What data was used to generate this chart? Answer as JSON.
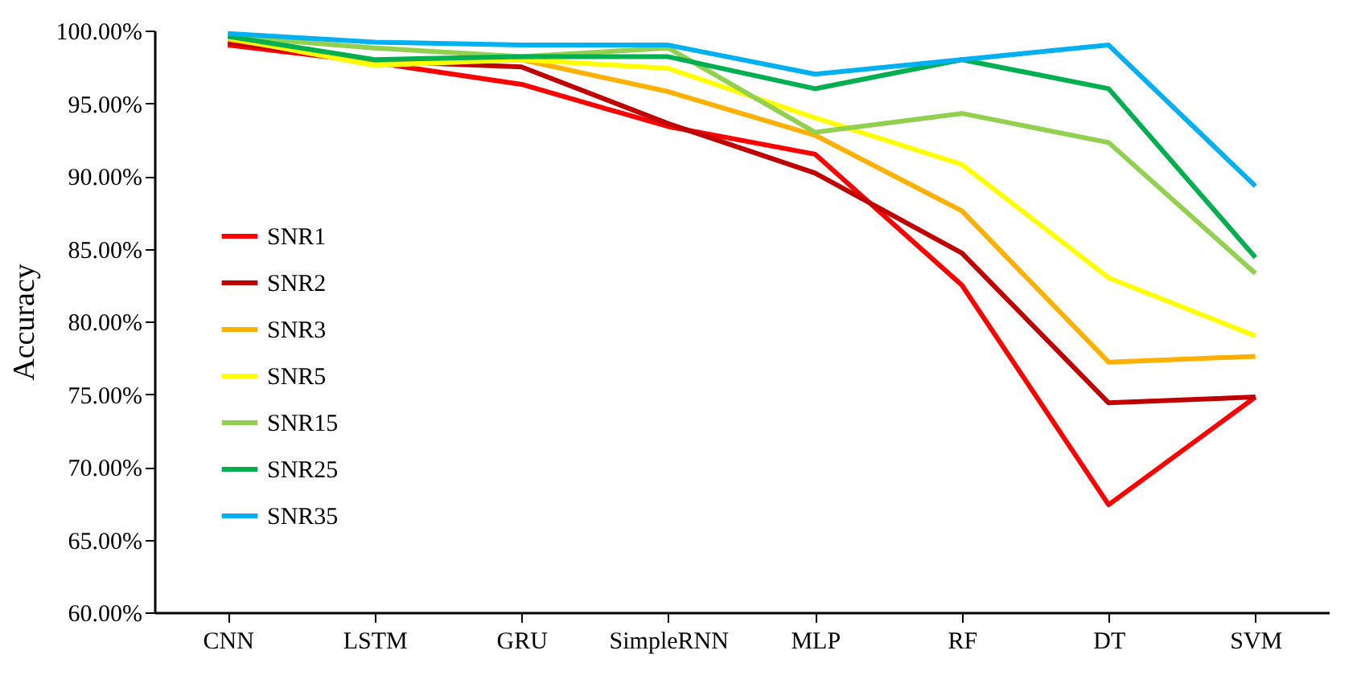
{
  "chart_data": {
    "type": "line",
    "ylabel": "Accuracy",
    "categories": [
      "CNN",
      "LSTM",
      "GRU",
      "SimpleRNN",
      "MLP",
      "RF",
      "DT",
      "SVM"
    ],
    "ylim": [
      60,
      100
    ],
    "yticks": [
      {
        "value": 60,
        "label": "60.00%"
      },
      {
        "value": 65,
        "label": "65.00%"
      },
      {
        "value": 70,
        "label": "70.00%"
      },
      {
        "value": 75,
        "label": "75.00%"
      },
      {
        "value": 80,
        "label": "80.00%"
      },
      {
        "value": 85,
        "label": "85.00%"
      },
      {
        "value": 90,
        "label": "90.00%"
      },
      {
        "value": 95,
        "label": "95.00%"
      },
      {
        "value": 100,
        "label": "100.00%"
      }
    ],
    "grid": false,
    "legend": "left",
    "marker": "none",
    "line_style": "solid",
    "series": [
      {
        "name": "SNR1",
        "color": "#ff0000",
        "values": [
          99.0,
          97.8,
          96.3,
          93.4,
          91.5,
          82.5,
          67.4,
          74.8
        ]
      },
      {
        "name": "SNR2",
        "color": "#c00000",
        "values": [
          99.2,
          97.9,
          97.5,
          93.6,
          90.2,
          84.7,
          74.4,
          74.8
        ]
      },
      {
        "name": "SNR3",
        "color": "#ffb000",
        "values": [
          99.4,
          97.8,
          98.0,
          95.8,
          92.8,
          87.6,
          77.2,
          77.6
        ]
      },
      {
        "name": "SNR5",
        "color": "#ffff00",
        "values": [
          99.5,
          97.6,
          98.0,
          97.4,
          94.0,
          90.8,
          83.0,
          79.0
        ]
      },
      {
        "name": "SNR15",
        "color": "#92d050",
        "values": [
          99.6,
          98.8,
          98.2,
          98.8,
          93.0,
          94.3,
          92.3,
          83.3
        ]
      },
      {
        "name": "SNR25",
        "color": "#00b050",
        "values": [
          99.6,
          98.0,
          98.2,
          98.2,
          96.0,
          98.0,
          96.0,
          84.4
        ]
      },
      {
        "name": "SNR35",
        "color": "#00b0f0",
        "values": [
          99.8,
          99.2,
          99.0,
          99.0,
          97.0,
          98.0,
          99.0,
          89.3
        ]
      }
    ]
  }
}
